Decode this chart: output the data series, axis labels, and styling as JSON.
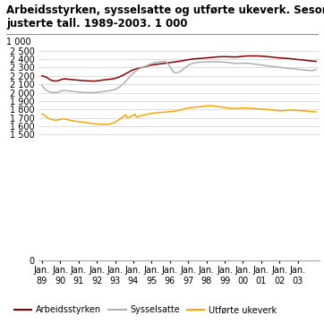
{
  "title_line1": "Arbeidsstyrken, sysselsatte og utførte ukeverk. Sesong-",
  "title_line2": "justerte tall. 1989-2003. 1 000",
  "yticks": [
    0,
    1500,
    1600,
    1700,
    1800,
    1900,
    2000,
    2100,
    2200,
    2300,
    2400,
    2500
  ],
  "ytick_labels": [
    "0",
    "1 500",
    "1 600",
    "1 700",
    "1 800",
    "1 900",
    "2 000",
    "2 100",
    "2 200",
    "2 300",
    "2 400",
    "2 500"
  ],
  "ylabel_top": "1 000",
  "ylim": [
    0,
    2620
  ],
  "xtick_years": [
    "89",
    "90",
    "91",
    "92",
    "93",
    "94",
    "95",
    "96",
    "97",
    "98",
    "99",
    "00",
    "01",
    "02",
    "03"
  ],
  "n_points": 181,
  "arbeidsstyrken": [
    2200,
    2195,
    2190,
    2182,
    2170,
    2158,
    2148,
    2143,
    2140,
    2138,
    2140,
    2145,
    2150,
    2158,
    2162,
    2163,
    2163,
    2160,
    2158,
    2156,
    2155,
    2153,
    2152,
    2150,
    2148,
    2146,
    2145,
    2143,
    2142,
    2140,
    2139,
    2138,
    2137,
    2136,
    2137,
    2138,
    2140,
    2142,
    2145,
    2148,
    2150,
    2152,
    2153,
    2155,
    2158,
    2160,
    2162,
    2165,
    2170,
    2175,
    2180,
    2188,
    2195,
    2205,
    2215,
    2225,
    2235,
    2245,
    2255,
    2265,
    2272,
    2278,
    2282,
    2288,
    2292,
    2295,
    2300,
    2305,
    2310,
    2315,
    2320,
    2325,
    2328,
    2330,
    2333,
    2336,
    2338,
    2340,
    2342,
    2345,
    2348,
    2350,
    2352,
    2355,
    2358,
    2360,
    2362,
    2365,
    2368,
    2370,
    2372,
    2375,
    2378,
    2382,
    2385,
    2388,
    2392,
    2395,
    2398,
    2400,
    2402,
    2403,
    2404,
    2405,
    2406,
    2408,
    2410,
    2412,
    2414,
    2415,
    2416,
    2418,
    2420,
    2422,
    2424,
    2425,
    2426,
    2427,
    2428,
    2428,
    2428,
    2428,
    2427,
    2426,
    2425,
    2424,
    2424,
    2424,
    2425,
    2426,
    2428,
    2430,
    2432,
    2434,
    2436,
    2437,
    2437,
    2438,
    2438,
    2438,
    2438,
    2437,
    2436,
    2435,
    2433,
    2432,
    2431,
    2430,
    2428,
    2426,
    2424,
    2422,
    2420,
    2418,
    2416,
    2414,
    2413,
    2412,
    2411,
    2410,
    2409,
    2408,
    2406,
    2404,
    2402,
    2400,
    2398,
    2396,
    2394,
    2392,
    2390,
    2388,
    2386,
    2384,
    2382,
    2380,
    2378,
    2376,
    2374,
    2373,
    2372
  ],
  "sysselsatte": [
    2090,
    2060,
    2040,
    2030,
    2020,
    2010,
    2005,
    2003,
    2002,
    2002,
    2003,
    2008,
    2015,
    2020,
    2025,
    2025,
    2023,
    2020,
    2018,
    2016,
    2014,
    2012,
    2010,
    2008,
    2006,
    2004,
    2003,
    2002,
    2001,
    2000,
    2000,
    2000,
    2000,
    2000,
    2001,
    2002,
    2003,
    2005,
    2008,
    2010,
    2012,
    2015,
    2018,
    2020,
    2022,
    2025,
    2028,
    2032,
    2038,
    2045,
    2055,
    2068,
    2082,
    2098,
    2115,
    2135,
    2155,
    2175,
    2195,
    2215,
    2232,
    2248,
    2262,
    2276,
    2285,
    2293,
    2300,
    2308,
    2315,
    2322,
    2330,
    2338,
    2345,
    2350,
    2355,
    2360,
    2363,
    2366,
    2368,
    2370,
    2372,
    2372,
    2358,
    2340,
    2310,
    2280,
    2255,
    2240,
    2235,
    2238,
    2245,
    2255,
    2268,
    2282,
    2295,
    2310,
    2322,
    2333,
    2342,
    2348,
    2353,
    2357,
    2360,
    2362,
    2363,
    2364,
    2365,
    2366,
    2367,
    2368,
    2368,
    2368,
    2368,
    2368,
    2368,
    2368,
    2367,
    2366,
    2365,
    2364,
    2362,
    2360,
    2358,
    2356,
    2354,
    2352,
    2350,
    2348,
    2348,
    2348,
    2349,
    2350,
    2350,
    2350,
    2350,
    2349,
    2347,
    2345,
    2343,
    2341,
    2339,
    2337,
    2334,
    2331,
    2328,
    2326,
    2323,
    2321,
    2318,
    2316,
    2314,
    2312,
    2310,
    2308,
    2306,
    2303,
    2301,
    2299,
    2297,
    2295,
    2293,
    2290,
    2288,
    2286,
    2284,
    2282,
    2280,
    2278,
    2276,
    2274,
    2272,
    2270,
    2268,
    2267,
    2266,
    2265,
    2264,
    2263,
    2262,
    2272,
    2270
  ],
  "ukeverk": [
    1745,
    1740,
    1728,
    1712,
    1698,
    1688,
    1682,
    1678,
    1675,
    1672,
    1674,
    1678,
    1682,
    1685,
    1688,
    1686,
    1682,
    1678,
    1674,
    1670,
    1666,
    1662,
    1660,
    1658,
    1656,
    1654,
    1653,
    1651,
    1648,
    1645,
    1642,
    1638,
    1635,
    1632,
    1630,
    1628,
    1626,
    1625,
    1623,
    1622,
    1621,
    1620,
    1620,
    1622,
    1625,
    1630,
    1635,
    1642,
    1650,
    1660,
    1670,
    1682,
    1695,
    1708,
    1722,
    1738,
    1700,
    1705,
    1712,
    1722,
    1733,
    1745,
    1710,
    1715,
    1720,
    1726,
    1732,
    1735,
    1738,
    1742,
    1746,
    1750,
    1753,
    1756,
    1758,
    1760,
    1762,
    1764,
    1765,
    1766,
    1767,
    1768,
    1770,
    1772,
    1774,
    1776,
    1778,
    1780,
    1782,
    1786,
    1790,
    1795,
    1800,
    1805,
    1810,
    1815,
    1818,
    1820,
    1822,
    1824,
    1826,
    1828,
    1830,
    1832,
    1834,
    1836,
    1838,
    1840,
    1842,
    1843,
    1844,
    1845,
    1843,
    1840,
    1837,
    1835,
    1833,
    1830,
    1828,
    1825,
    1822,
    1820,
    1818,
    1816,
    1815,
    1813,
    1812,
    1812,
    1813,
    1814,
    1816,
    1817,
    1818,
    1818,
    1818,
    1817,
    1816,
    1815,
    1813,
    1812,
    1810,
    1808,
    1807,
    1806,
    1805,
    1805,
    1804,
    1803,
    1802,
    1800,
    1798,
    1796,
    1793,
    1790,
    1787,
    1785,
    1783,
    1782,
    1783,
    1785,
    1787,
    1790,
    1792,
    1793,
    1793,
    1792,
    1790,
    1788,
    1787,
    1786,
    1786,
    1785,
    1784,
    1782,
    1780,
    1778,
    1776,
    1774,
    1773,
    1772,
    1771
  ],
  "line_colors": {
    "arbeidsstyrken": "#8B0000",
    "sysselsatte": "#B0B0B0",
    "ukeverk": "#FFA500"
  },
  "legend_labels": [
    "Arbeidsstyrken",
    "Sysselsatte",
    "Utførte ukeverk"
  ],
  "background_color": "#FFFFFF",
  "grid_color": "#D0D0D0",
  "title_fontsize": 8.5,
  "axis_fontsize": 7
}
